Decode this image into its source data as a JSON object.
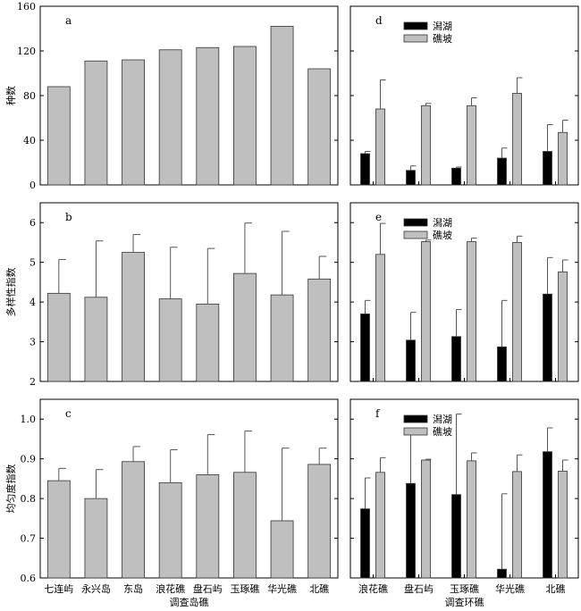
{
  "colors": {
    "reef_slope": "#bfbfbf",
    "lagoon": "#000000",
    "bar_edge": "#333333"
  },
  "chart_data": [
    {
      "panel": "a",
      "type": "bar",
      "categories": [
        "七连屿",
        "永兴岛",
        "东岛",
        "浪花礁",
        "盘石屿",
        "玉琢礁",
        "华光礁",
        "北礁"
      ],
      "series": [
        {
          "values": [
            88,
            111,
            112,
            121,
            123,
            124,
            142,
            104
          ]
        }
      ],
      "ylabel": "种数",
      "ylim": [
        0,
        160
      ],
      "yticks": [
        0,
        40,
        80,
        120,
        160
      ],
      "xtick_labels": false
    },
    {
      "panel": "b",
      "type": "bar",
      "categories": [
        "七连屿",
        "永兴岛",
        "东岛",
        "浪花礁",
        "盘石屿",
        "玉琢礁",
        "华光礁",
        "北礁"
      ],
      "series": [
        {
          "values": [
            4.22,
            4.12,
            5.25,
            4.08,
            3.95,
            4.72,
            4.18,
            4.58
          ],
          "errors": [
            0.85,
            1.42,
            0.45,
            1.3,
            1.4,
            1.27,
            1.6,
            0.57
          ]
        }
      ],
      "ylabel": "多样性指数",
      "ylim": [
        2,
        6.5
      ],
      "yticks": [
        2,
        3,
        4,
        5,
        6
      ],
      "xtick_labels": false
    },
    {
      "panel": "c",
      "type": "bar",
      "categories": [
        "七连屿",
        "永兴岛",
        "东岛",
        "浪花礁",
        "盘石屿",
        "玉琢礁",
        "华光礁",
        "北礁"
      ],
      "series": [
        {
          "values": [
            0.845,
            0.8,
            0.893,
            0.84,
            0.86,
            0.866,
            0.744,
            0.886
          ],
          "errors": [
            0.031,
            0.073,
            0.038,
            0.083,
            0.101,
            0.104,
            0.183,
            0.041
          ]
        }
      ],
      "ylabel": "均匀度指数",
      "ylim": [
        0.6,
        1.05
      ],
      "yticks": [
        0.6,
        0.7,
        0.8,
        0.9,
        1.0
      ],
      "xlabel": "调查岛礁",
      "xtick_labels": true
    },
    {
      "panel": "d",
      "type": "bar",
      "categories": [
        "浪花礁",
        "盘石屿",
        "玉琢礁",
        "华光礁",
        "北礁"
      ],
      "series": [
        {
          "name": "潟湖",
          "values": [
            28,
            13,
            15,
            24,
            30
          ],
          "errors": [
            2,
            4,
            1,
            9,
            24
          ]
        },
        {
          "name": "礁坡",
          "values": [
            68,
            71,
            71,
            82,
            47
          ],
          "errors": [
            26,
            2,
            7,
            14,
            11
          ]
        }
      ],
      "ylim": [
        0,
        160
      ],
      "legend": "top",
      "xtick_labels": false
    },
    {
      "panel": "e",
      "type": "bar",
      "categories": [
        "浪花礁",
        "盘石屿",
        "玉琢礁",
        "华光礁",
        "北礁"
      ],
      "series": [
        {
          "name": "潟湖",
          "values": [
            3.7,
            3.04,
            3.13,
            2.87,
            4.2
          ],
          "errors": [
            0.34,
            0.7,
            0.68,
            1.17,
            0.92
          ]
        },
        {
          "name": "礁坡",
          "values": [
            5.2,
            5.52,
            5.52,
            5.5,
            4.76
          ],
          "errors": [
            0.78,
            0.04,
            0.09,
            0.16,
            0.3
          ]
        }
      ],
      "ylim": [
        2,
        6.5
      ],
      "legend": "top",
      "xtick_labels": false
    },
    {
      "panel": "f",
      "type": "bar",
      "categories": [
        "浪花礁",
        "盘石屿",
        "玉琢礁",
        "华光礁",
        "北礁"
      ],
      "series": [
        {
          "name": "潟湖",
          "values": [
            0.774,
            0.838,
            0.81,
            0.622,
            0.918
          ],
          "errors": [
            0.078,
            0.127,
            0.203,
            0.19,
            0.06
          ]
        },
        {
          "name": "礁坡",
          "values": [
            0.866,
            0.897,
            0.895,
            0.868,
            0.869
          ],
          "errors": [
            0.037,
            0.002,
            0.02,
            0.042,
            0.028
          ]
        }
      ],
      "ylim": [
        0.6,
        1.05
      ],
      "legend": "top",
      "xlabel": "调查环礁",
      "xtick_labels": true
    }
  ]
}
